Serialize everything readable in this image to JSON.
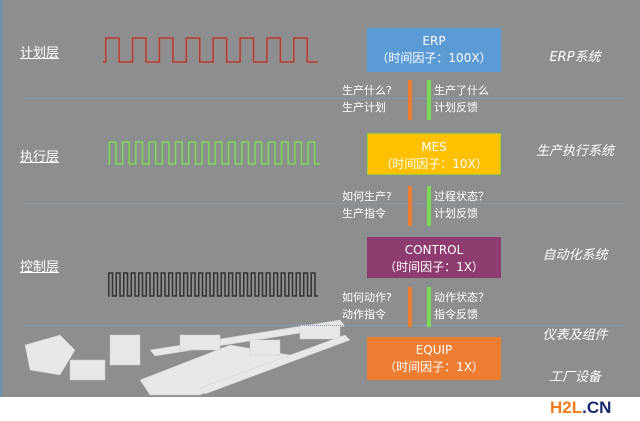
{
  "layers": [
    {
      "label": "计划层"
    },
    {
      "label": "执行层"
    },
    {
      "label": "控制层"
    }
  ],
  "boxes": [
    {
      "title": "ERP",
      "subtitle": "（时间因子：100X）",
      "color": "#5b9bd5"
    },
    {
      "title": "MES",
      "subtitle": "（时间因子：10X）",
      "color": "#ffc000"
    },
    {
      "title": "CONTROL",
      "subtitle": "（时间因子：1X）",
      "color": "#8e3b6f"
    },
    {
      "title": "EQUIP",
      "subtitle": "（时间因子：1X）",
      "color": "#ed7d31"
    }
  ],
  "systems": [
    "ERP系统",
    "生产执行系统",
    "自动化系统",
    "仪表及组件",
    "工厂设备"
  ],
  "flows": [
    {
      "down": [
        "生产什么?",
        "生产计划"
      ],
      "up": [
        "生产了什么",
        "计划反馈"
      ]
    },
    {
      "down": [
        "如何生产?",
        "生产指令"
      ],
      "up": [
        "过程状态？",
        "计划反馈"
      ]
    },
    {
      "down": [
        "如何动作?",
        "动作指令"
      ],
      "up": [
        "动作状态？",
        "指令反馈"
      ]
    }
  ],
  "signals": [
    {
      "color": "#c0392b"
    },
    {
      "color": "#7ed957"
    },
    {
      "color": "#333333"
    }
  ],
  "logo": {
    "h2l": "H2L",
    "cn": ".CN"
  }
}
